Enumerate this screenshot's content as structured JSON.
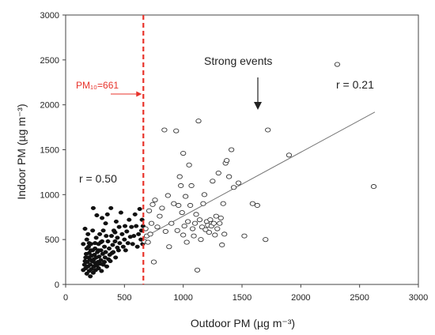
{
  "chart_data": {
    "type": "scatter",
    "title": "",
    "xlabel": "Outdoor PM (µg m⁻³)",
    "ylabel": "Indoor PM (µg m⁻³)",
    "xlim": [
      0,
      3000
    ],
    "ylim": [
      0,
      3000
    ],
    "xticks": [
      0,
      500,
      1000,
      1500,
      2000,
      2500,
      3000
    ],
    "yticks": [
      0,
      500,
      1000,
      1500,
      2000,
      2500,
      3000
    ],
    "grid": false,
    "threshold": {
      "x": 661,
      "label": "PM₁₀=661",
      "color": "#e8332b"
    },
    "annotations": {
      "strong_events": "Strong events",
      "r_left": "r = 0.50",
      "r_right": "r = 0.21"
    },
    "trend_line": {
      "x": [
        660,
        2630
      ],
      "y": [
        520,
        1920
      ]
    },
    "series": [
      {
        "marker": "filled",
        "points": [
          [
            150,
            160
          ],
          [
            160,
            220
          ],
          [
            165,
            260
          ],
          [
            170,
            300
          ],
          [
            170,
            180
          ],
          [
            175,
            340
          ],
          [
            180,
            120
          ],
          [
            180,
            400
          ],
          [
            185,
            250
          ],
          [
            190,
            200
          ],
          [
            190,
            560
          ],
          [
            195,
            300
          ],
          [
            200,
            150
          ],
          [
            200,
            350
          ],
          [
            205,
            280
          ],
          [
            210,
            90
          ],
          [
            210,
            220
          ],
          [
            215,
            450
          ],
          [
            220,
            320
          ],
          [
            220,
            170
          ],
          [
            225,
            260
          ],
          [
            230,
            600
          ],
          [
            230,
            380
          ],
          [
            235,
            130
          ],
          [
            240,
            280
          ],
          [
            240,
            200
          ],
          [
            245,
            330
          ],
          [
            250,
            400
          ],
          [
            250,
            240
          ],
          [
            255,
            160
          ],
          [
            260,
            520
          ],
          [
            260,
            300
          ],
          [
            265,
            210
          ],
          [
            270,
            360
          ],
          [
            275,
            250
          ],
          [
            280,
            180
          ],
          [
            280,
            450
          ],
          [
            285,
            310
          ],
          [
            290,
            560
          ],
          [
            295,
            230
          ],
          [
            300,
            380
          ],
          [
            300,
            270
          ],
          [
            305,
            150
          ],
          [
            310,
            480
          ],
          [
            315,
            340
          ],
          [
            320,
            600
          ],
          [
            320,
            220
          ],
          [
            330,
            420
          ],
          [
            335,
            300
          ],
          [
            340,
            680
          ],
          [
            340,
            360
          ],
          [
            350,
            200
          ],
          [
            355,
            780
          ],
          [
            360,
            480
          ],
          [
            370,
            400
          ],
          [
            375,
            330
          ],
          [
            380,
            260
          ],
          [
            385,
            850
          ],
          [
            390,
            540
          ],
          [
            400,
            440
          ],
          [
            405,
            360
          ],
          [
            410,
            600
          ],
          [
            420,
            480
          ],
          [
            425,
            300
          ],
          [
            430,
            700
          ],
          [
            440,
            520
          ],
          [
            450,
            380
          ],
          [
            455,
            640
          ],
          [
            460,
            460
          ],
          [
            470,
            800
          ],
          [
            480,
            560
          ],
          [
            490,
            420
          ],
          [
            500,
            500
          ],
          [
            505,
            650
          ],
          [
            510,
            380
          ],
          [
            520,
            590
          ],
          [
            530,
            460
          ],
          [
            540,
            720
          ],
          [
            550,
            530
          ],
          [
            560,
            640
          ],
          [
            570,
            450
          ],
          [
            580,
            540
          ],
          [
            590,
            780
          ],
          [
            600,
            650
          ],
          [
            610,
            420
          ],
          [
            620,
            560
          ],
          [
            630,
            840
          ],
          [
            640,
            500
          ],
          [
            645,
            600
          ],
          [
            650,
            720
          ],
          [
            655,
            450
          ],
          [
            658,
            650
          ],
          [
            235,
            850
          ],
          [
            265,
            770
          ],
          [
            310,
            740
          ],
          [
            420,
            580
          ],
          [
            150,
            450
          ],
          [
            165,
            620
          ],
          [
            180,
            500
          ],
          [
            195,
            420
          ],
          [
            200,
            460
          ],
          [
            215,
            380
          ],
          [
            250,
            460
          ],
          [
            280,
            380
          ],
          [
            300,
            470
          ],
          [
            330,
            250
          ],
          [
            345,
            540
          ],
          [
            365,
            280
          ],
          [
            395,
            350
          ],
          [
            440,
            410
          ]
        ]
      },
      {
        "marker": "open",
        "points": [
          [
            670,
            480
          ],
          [
            680,
            620
          ],
          [
            690,
            540
          ],
          [
            700,
            470
          ],
          [
            710,
            820
          ],
          [
            720,
            560
          ],
          [
            730,
            680
          ],
          [
            740,
            890
          ],
          [
            750,
            250
          ],
          [
            760,
            940
          ],
          [
            780,
            640
          ],
          [
            800,
            760
          ],
          [
            820,
            850
          ],
          [
            840,
            1720
          ],
          [
            850,
            590
          ],
          [
            870,
            990
          ],
          [
            880,
            420
          ],
          [
            900,
            680
          ],
          [
            920,
            900
          ],
          [
            940,
            1710
          ],
          [
            950,
            600
          ],
          [
            960,
            880
          ],
          [
            970,
            1200
          ],
          [
            980,
            1100
          ],
          [
            990,
            800
          ],
          [
            1000,
            1460
          ],
          [
            1000,
            550
          ],
          [
            1010,
            650
          ],
          [
            1020,
            980
          ],
          [
            1030,
            470
          ],
          [
            1040,
            700
          ],
          [
            1050,
            1330
          ],
          [
            1060,
            880
          ],
          [
            1070,
            1100
          ],
          [
            1080,
            620
          ],
          [
            1090,
            540
          ],
          [
            1100,
            680
          ],
          [
            1110,
            780
          ],
          [
            1120,
            160
          ],
          [
            1130,
            1820
          ],
          [
            1140,
            720
          ],
          [
            1150,
            500
          ],
          [
            1160,
            640
          ],
          [
            1170,
            900
          ],
          [
            1180,
            1000
          ],
          [
            1190,
            610
          ],
          [
            1200,
            700
          ],
          [
            1210,
            660
          ],
          [
            1220,
            580
          ],
          [
            1230,
            720
          ],
          [
            1240,
            650
          ],
          [
            1250,
            1150
          ],
          [
            1260,
            680
          ],
          [
            1270,
            550
          ],
          [
            1280,
            760
          ],
          [
            1290,
            620
          ],
          [
            1300,
            1240
          ],
          [
            1310,
            680
          ],
          [
            1320,
            740
          ],
          [
            1330,
            440
          ],
          [
            1340,
            900
          ],
          [
            1350,
            560
          ],
          [
            1360,
            1350
          ],
          [
            1370,
            1380
          ],
          [
            1390,
            1200
          ],
          [
            1410,
            1500
          ],
          [
            1430,
            1080
          ],
          [
            1470,
            1130
          ],
          [
            1520,
            540
          ],
          [
            1590,
            900
          ],
          [
            1630,
            880
          ],
          [
            1700,
            500
          ],
          [
            1720,
            1720
          ],
          [
            1900,
            1440
          ],
          [
            2310,
            2450
          ],
          [
            2620,
            1090
          ]
        ]
      }
    ]
  }
}
